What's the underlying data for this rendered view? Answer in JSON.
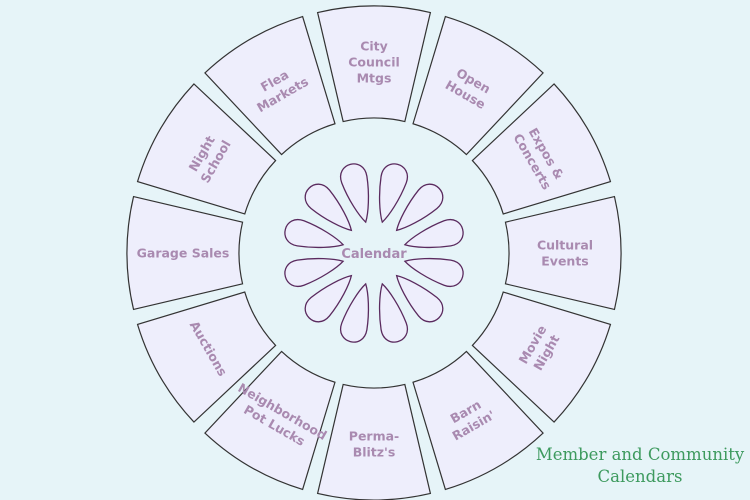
{
  "diagram": {
    "center_label": "Calendar",
    "segments": [
      {
        "lines": [
          "City",
          "Council",
          "Mtgs"
        ]
      },
      {
        "lines": [
          "Open",
          "House"
        ]
      },
      {
        "lines": [
          "Expos &",
          "Concerts"
        ]
      },
      {
        "lines": [
          "Cultural",
          "Events"
        ]
      },
      {
        "lines": [
          "Movie",
          "Night"
        ]
      },
      {
        "lines": [
          "Barn",
          "Raisin'"
        ]
      },
      {
        "lines": [
          "Perma-",
          "Blitz's"
        ]
      },
      {
        "lines": [
          "Neighborhood",
          "Pot Lucks"
        ]
      },
      {
        "lines": [
          "Auctions"
        ]
      },
      {
        "lines": [
          "Garage Sales"
        ]
      },
      {
        "lines": [
          "Night",
          "School"
        ]
      },
      {
        "lines": [
          "Flea",
          "Markets"
        ]
      }
    ],
    "petal_count": 12,
    "colors": {
      "background": "#e6f4f8",
      "segment_fill": "#eeeefc",
      "segment_stroke": "#333333",
      "petal_stroke": "#5a2a5e",
      "label": "#a98ab0",
      "caption": "#3d9a5e"
    }
  },
  "caption": {
    "line1": "Member and Community",
    "line2": "Calendars"
  }
}
